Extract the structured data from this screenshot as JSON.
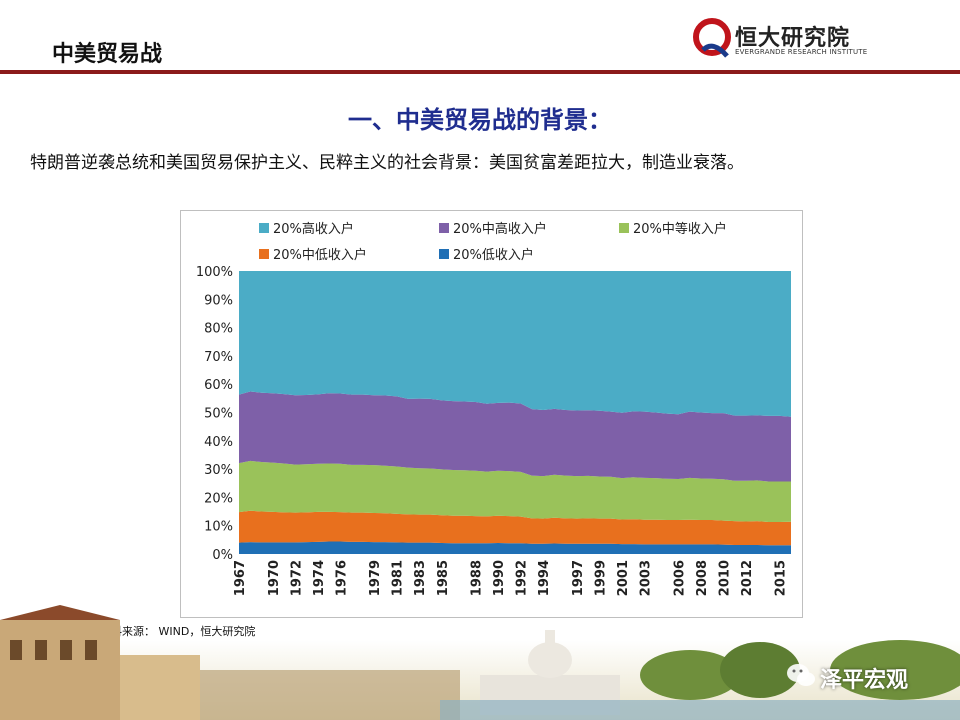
{
  "header": {
    "title": "中美贸易战"
  },
  "logo": {
    "name_cn": "恒大研究院",
    "name_en": "EVERGRANDE RESEARCH INSTITUTE",
    "brand_color": "#c0141b"
  },
  "heading": "一、中美贸易战的背景：",
  "subtitle": "特朗普逆袭总统和美国贸易保护主义、民粹主义的社会背景：美国贫富差距拉大，制造业衰落。",
  "source": "资料来源： WIND，恒大研究院",
  "watermark": "泽平宏观",
  "chart_data": {
    "type": "area",
    "stacked": true,
    "percent": true,
    "x": [
      1967,
      1968,
      1969,
      1970,
      1971,
      1972,
      1973,
      1974,
      1975,
      1976,
      1977,
      1978,
      1979,
      1980,
      1981,
      1982,
      1983,
      1984,
      1985,
      1986,
      1987,
      1988,
      1989,
      1990,
      1991,
      1992,
      1993,
      1994,
      1995,
      1996,
      1997,
      1998,
      1999,
      2000,
      2001,
      2002,
      2003,
      2004,
      2005,
      2006,
      2007,
      2008,
      2009,
      2010,
      2011,
      2012,
      2013,
      2014,
      2015,
      2016
    ],
    "x_tick_labels": [
      "1967",
      "1970",
      "1972",
      "1974",
      "1976",
      "1979",
      "1981",
      "1983",
      "1985",
      "1988",
      "1990",
      "1992",
      "1994",
      "1997",
      "1999",
      "2001",
      "2003",
      "2006",
      "2008",
      "2010",
      "2012",
      "2015"
    ],
    "y_ticks": [
      "0%",
      "10%",
      "20%",
      "30%",
      "40%",
      "50%",
      "60%",
      "70%",
      "80%",
      "90%",
      "100%"
    ],
    "ylim": [
      0,
      100
    ],
    "legend_position": "top",
    "series": [
      {
        "name": "20%低收入户",
        "color": "#1f6fb5",
        "values": [
          4.0,
          4.2,
          4.1,
          4.1,
          4.1,
          4.1,
          4.2,
          4.3,
          4.4,
          4.4,
          4.3,
          4.3,
          4.2,
          4.2,
          4.1,
          4.0,
          4.0,
          4.0,
          3.9,
          3.8,
          3.8,
          3.8,
          3.8,
          3.9,
          3.8,
          3.8,
          3.6,
          3.6,
          3.7,
          3.6,
          3.6,
          3.6,
          3.6,
          3.6,
          3.5,
          3.5,
          3.4,
          3.4,
          3.4,
          3.4,
          3.4,
          3.4,
          3.4,
          3.3,
          3.2,
          3.2,
          3.2,
          3.1,
          3.1,
          3.1
        ]
      },
      {
        "name": "20%中低收入户",
        "color": "#e8701e",
        "values": [
          10.8,
          11.1,
          10.9,
          10.8,
          10.6,
          10.5,
          10.5,
          10.6,
          10.5,
          10.4,
          10.3,
          10.3,
          10.3,
          10.2,
          10.1,
          10.0,
          9.9,
          9.9,
          9.8,
          9.7,
          9.7,
          9.6,
          9.5,
          9.6,
          9.6,
          9.4,
          9.0,
          8.9,
          9.1,
          9.0,
          8.9,
          9.0,
          8.9,
          8.9,
          8.7,
          8.8,
          8.7,
          8.7,
          8.6,
          8.6,
          8.7,
          8.6,
          8.6,
          8.5,
          8.4,
          8.3,
          8.4,
          8.2,
          8.2,
          8.3
        ]
      },
      {
        "name": "20%中等收入户",
        "color": "#9ac25a",
        "values": [
          17.3,
          17.6,
          17.5,
          17.4,
          17.3,
          17.0,
          17.0,
          17.0,
          17.1,
          17.1,
          16.9,
          16.9,
          16.9,
          16.8,
          16.7,
          16.5,
          16.4,
          16.3,
          16.2,
          16.2,
          16.1,
          16.0,
          15.8,
          15.9,
          15.9,
          15.8,
          15.1,
          15.0,
          15.2,
          15.1,
          15.0,
          15.0,
          14.9,
          14.8,
          14.6,
          14.8,
          14.8,
          14.7,
          14.6,
          14.5,
          14.8,
          14.7,
          14.6,
          14.6,
          14.3,
          14.4,
          14.4,
          14.3,
          14.3,
          14.2
        ]
      },
      {
        "name": "20%中高收入户",
        "color": "#7e60a8",
        "values": [
          24.2,
          24.5,
          24.5,
          24.5,
          24.5,
          24.5,
          24.5,
          24.5,
          24.8,
          24.8,
          24.8,
          24.8,
          24.7,
          24.8,
          24.8,
          24.3,
          24.6,
          24.6,
          24.4,
          24.3,
          24.3,
          24.3,
          24.0,
          24.0,
          24.2,
          24.2,
          23.5,
          23.4,
          23.3,
          23.2,
          23.2,
          23.2,
          23.2,
          23.0,
          23.1,
          23.3,
          23.4,
          23.2,
          23.0,
          22.9,
          23.4,
          23.3,
          23.2,
          23.4,
          23.0,
          23.0,
          23.0,
          23.2,
          23.2,
          22.9
        ]
      },
      {
        "name": "20%高收入户",
        "color": "#4bacc6",
        "values": [
          43.7,
          42.6,
          43.0,
          43.2,
          43.5,
          43.9,
          43.8,
          43.6,
          43.2,
          43.3,
          43.7,
          43.7,
          43.9,
          44.0,
          44.3,
          45.2,
          45.1,
          45.2,
          45.7,
          46.0,
          46.1,
          46.3,
          46.9,
          46.6,
          46.5,
          46.8,
          48.8,
          49.1,
          48.7,
          49.1,
          49.3,
          49.2,
          49.4,
          49.7,
          50.1,
          49.6,
          49.7,
          50.0,
          50.4,
          50.6,
          49.7,
          50.0,
          50.2,
          50.2,
          51.1,
          51.1,
          51.0,
          51.2,
          51.2,
          51.5
        ]
      }
    ]
  }
}
